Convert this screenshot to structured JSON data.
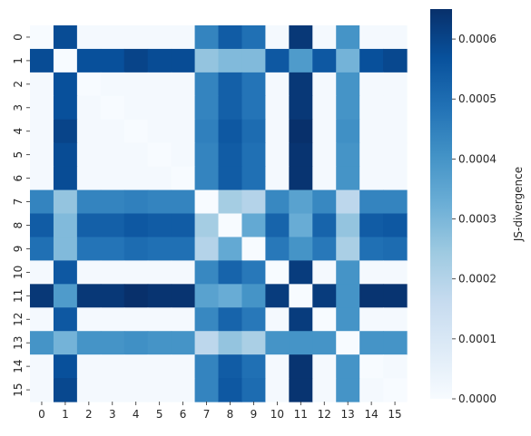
{
  "chart_data": {
    "type": "heatmap",
    "title": "",
    "xlabel": "",
    "ylabel": "",
    "x_categories": [
      "0",
      "1",
      "2",
      "3",
      "4",
      "5",
      "6",
      "7",
      "8",
      "9",
      "10",
      "11",
      "12",
      "13",
      "14",
      "15"
    ],
    "y_categories": [
      "0",
      "1",
      "2",
      "3",
      "4",
      "5",
      "6",
      "7",
      "8",
      "9",
      "10",
      "11",
      "12",
      "13",
      "14",
      "15"
    ],
    "values": [
      [
        0.0,
        0.00058,
        1e-05,
        1e-05,
        1e-05,
        1e-05,
        1e-05,
        0.00044,
        0.00054,
        0.00049,
        1e-05,
        0.00063,
        1e-05,
        0.0004,
        1e-05,
        1e-05
      ],
      [
        0.00058,
        0.0,
        0.00057,
        0.00057,
        0.0006,
        0.00058,
        0.00058,
        0.00026,
        0.00029,
        0.00029,
        0.00055,
        0.00038,
        0.00055,
        0.00031,
        0.00057,
        0.00059
      ],
      [
        1e-05,
        0.00057,
        0.0,
        1e-05,
        1e-05,
        1e-05,
        1e-05,
        0.00044,
        0.00053,
        0.00048,
        1e-05,
        0.00063,
        1e-05,
        0.0004,
        1e-05,
        1e-05
      ],
      [
        1e-05,
        0.00057,
        1e-05,
        0.0,
        1e-05,
        1e-05,
        1e-05,
        0.00044,
        0.00053,
        0.00048,
        1e-05,
        0.00063,
        1e-05,
        0.0004,
        1e-05,
        1e-05
      ],
      [
        1e-05,
        0.0006,
        1e-05,
        1e-05,
        0.0,
        1e-05,
        1e-05,
        0.00045,
        0.00055,
        0.0005,
        1e-05,
        0.00065,
        1e-05,
        0.00041,
        1e-05,
        1e-05
      ],
      [
        1e-05,
        0.00058,
        1e-05,
        1e-05,
        1e-05,
        0.0,
        1e-05,
        0.00044,
        0.00054,
        0.00049,
        1e-05,
        0.00064,
        1e-05,
        0.0004,
        1e-05,
        1e-05
      ],
      [
        1e-05,
        0.00058,
        1e-05,
        1e-05,
        1e-05,
        1e-05,
        0.0,
        0.00044,
        0.00054,
        0.00049,
        1e-05,
        0.00064,
        1e-05,
        0.0004,
        1e-05,
        1e-05
      ],
      [
        0.00044,
        0.00026,
        0.00044,
        0.00044,
        0.00045,
        0.00044,
        0.00044,
        0.0,
        0.00023,
        0.0002,
        0.00043,
        0.00036,
        0.00043,
        0.00018,
        0.00044,
        0.00044
      ],
      [
        0.00054,
        0.00029,
        0.00053,
        0.00053,
        0.00055,
        0.00054,
        0.00054,
        0.00023,
        0.0,
        0.00034,
        0.00052,
        0.00033,
        0.00052,
        0.00026,
        0.00054,
        0.00055
      ],
      [
        0.00049,
        0.00029,
        0.00048,
        0.00048,
        0.0005,
        0.00049,
        0.00049,
        0.0002,
        0.00034,
        0.0,
        0.00047,
        0.0004,
        0.00047,
        0.00022,
        0.00049,
        0.0005
      ],
      [
        1e-05,
        0.00055,
        1e-05,
        1e-05,
        1e-05,
        1e-05,
        1e-05,
        0.00043,
        0.00052,
        0.00047,
        0.0,
        0.00062,
        1e-05,
        0.0004,
        1e-05,
        1e-05
      ],
      [
        0.00063,
        0.00038,
        0.00063,
        0.00063,
        0.00065,
        0.00064,
        0.00064,
        0.00036,
        0.00033,
        0.0004,
        0.00062,
        0.0,
        0.00062,
        0.0004,
        0.00064,
        0.00064
      ],
      [
        1e-05,
        0.00055,
        1e-05,
        1e-05,
        1e-05,
        1e-05,
        1e-05,
        0.00043,
        0.00052,
        0.00047,
        1e-05,
        0.00062,
        0.0,
        0.0004,
        1e-05,
        1e-05
      ],
      [
        0.0004,
        0.00031,
        0.0004,
        0.0004,
        0.00041,
        0.0004,
        0.0004,
        0.00018,
        0.00026,
        0.00022,
        0.0004,
        0.0004,
        0.0004,
        0.0,
        0.0004,
        0.0004
      ],
      [
        1e-05,
        0.00057,
        1e-05,
        1e-05,
        1e-05,
        1e-05,
        1e-05,
        0.00044,
        0.00054,
        0.00049,
        1e-05,
        0.00064,
        1e-05,
        0.0004,
        0.0,
        1e-05
      ],
      [
        1e-05,
        0.00059,
        1e-05,
        1e-05,
        1e-05,
        1e-05,
        1e-05,
        0.00044,
        0.00055,
        0.0005,
        1e-05,
        0.00064,
        1e-05,
        0.0004,
        1e-05,
        0.0
      ]
    ],
    "vmin": 0.0,
    "vmax": 0.00065,
    "colormap": [
      "#f7fbff",
      "#deebf7",
      "#c6dbef",
      "#9ecae1",
      "#6baed6",
      "#4292c6",
      "#2171b5",
      "#08519c",
      "#08306b"
    ],
    "colorbar": {
      "label": "JS-divergence",
      "tick_values": [
        0.0,
        0.0001,
        0.0002,
        0.0003,
        0.0004,
        0.0005,
        0.0006
      ],
      "tick_labels": [
        "0.0000",
        "0.0001",
        "0.0002",
        "0.0003",
        "0.0004",
        "0.0005",
        "0.0006"
      ]
    },
    "grid": false
  }
}
